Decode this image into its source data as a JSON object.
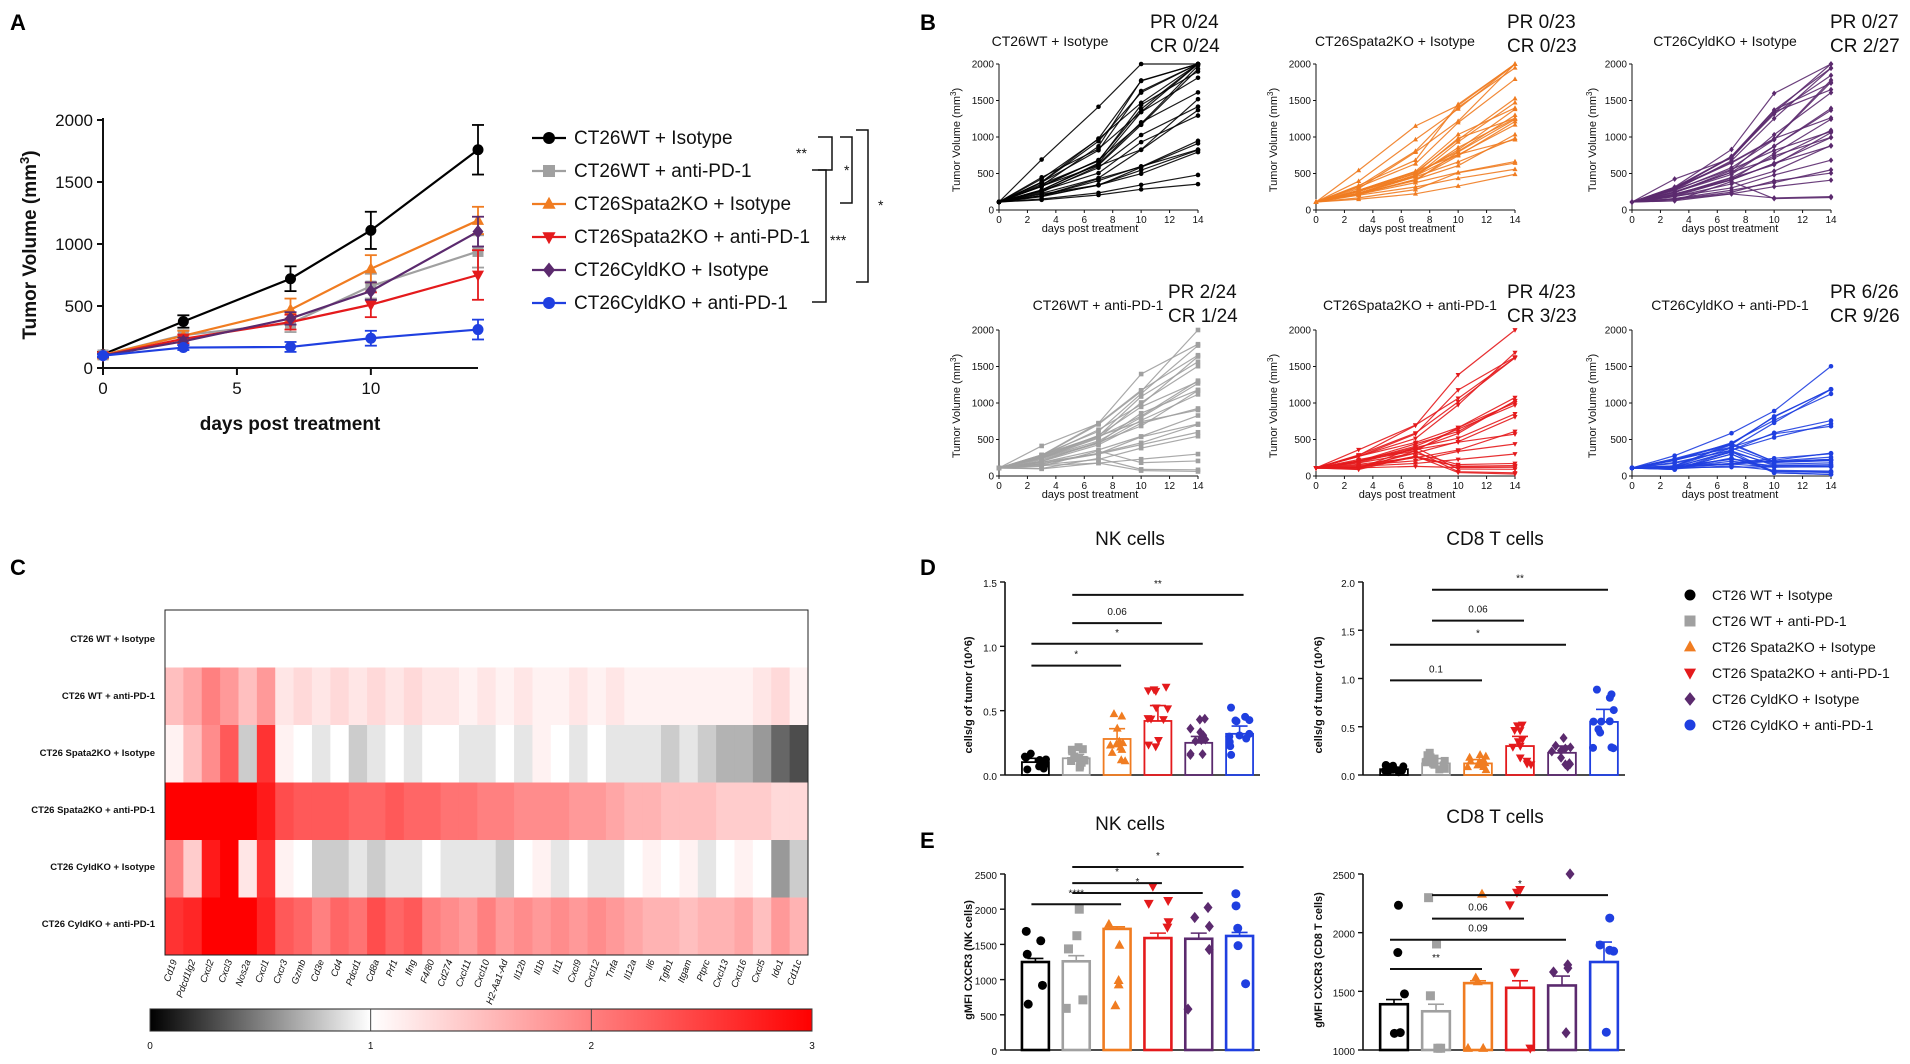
{
  "figure": {
    "panel_labels": [
      "A",
      "B",
      "C",
      "D",
      "E"
    ],
    "colors": {
      "wt_iso": "#000000",
      "wt_pd1": "#a0a0a0",
      "spata_iso": "#f07c21",
      "spata_pd1": "#e41a1c",
      "cyld_iso": "#5b2a6e",
      "cyld_pd1": "#1f3fe0"
    }
  },
  "chart_data": [
    {
      "id": "A",
      "type": "line",
      "title": "",
      "xlabel": "days post treatment",
      "ylabel": "Tumor Volume (mm3)",
      "ylabel_main": "Tumor Volume (mm",
      "ylabel_sup": "3",
      "xlim": [
        0,
        14
      ],
      "ylim": [
        0,
        2000
      ],
      "xticks": [
        "0",
        "5",
        "10"
      ],
      "xtick_values": [
        0,
        5,
        10
      ],
      "yticks": [
        "0",
        "500",
        "1000",
        "1500",
        "2000"
      ],
      "ytick_values": [
        0,
        500,
        1000,
        1500,
        2000
      ],
      "x": [
        0,
        3,
        7,
        10,
        14
      ],
      "series": [
        {
          "name": "CT26WT + Isotype",
          "color": "#000000",
          "marker": "circle",
          "values": [
            110,
            375,
            720,
            1110,
            1760
          ],
          "err": [
            20,
            50,
            100,
            150,
            200
          ]
        },
        {
          "name": "CT26WT + anti-PD-1",
          "color": "#a0a0a0",
          "marker": "square",
          "values": [
            105,
            265,
            360,
            660,
            940
          ],
          "err": [
            15,
            40,
            70,
            100,
            130
          ]
        },
        {
          "name": "CT26Spata2KO + Isotype",
          "color": "#f07c21",
          "marker": "triangle-up",
          "values": [
            105,
            260,
            470,
            800,
            1190
          ],
          "err": [
            15,
            40,
            90,
            110,
            110
          ]
        },
        {
          "name": "CT26Spata2KO + anti-PD-1",
          "color": "#e41a1c",
          "marker": "triangle-down",
          "values": [
            100,
            235,
            370,
            510,
            750
          ],
          "err": [
            15,
            35,
            60,
            100,
            200
          ]
        },
        {
          "name": "CT26CyldKO + Isotype",
          "color": "#5b2a6e",
          "marker": "diamond",
          "values": [
            100,
            215,
            400,
            620,
            1100
          ],
          "err": [
            15,
            30,
            50,
            70,
            120
          ]
        },
        {
          "name": "CT26CyldKO + anti-PD-1",
          "color": "#1f3fe0",
          "marker": "circle",
          "values": [
            100,
            165,
            170,
            240,
            310
          ],
          "err": [
            10,
            20,
            40,
            60,
            80
          ]
        }
      ],
      "significance": [
        "**",
        "*",
        "***",
        "*"
      ]
    },
    {
      "id": "B",
      "type": "line",
      "xlabel": "days post treatment",
      "ylabel": "Tumor Volume (mm3)",
      "ylabel_main": "Tumor Volume (mm",
      "ylabel_sup": "3",
      "xlim": [
        0,
        14
      ],
      "ylim": [
        0,
        2000
      ],
      "xticks": [
        "0",
        "2",
        "4",
        "6",
        "8",
        "10",
        "12",
        "14"
      ],
      "xtick_values": [
        0,
        2,
        4,
        6,
        8,
        10,
        12,
        14
      ],
      "yticks": [
        "0",
        "500",
        "1000",
        "1500",
        "2000"
      ],
      "ytick_values": [
        0,
        500,
        1000,
        1500,
        2000
      ],
      "x": [
        0,
        3,
        7,
        10,
        14
      ],
      "panels": [
        {
          "title": "CT26WT + Isotype",
          "pr": "PR 0/24",
          "cr": "CR 0/24",
          "color": "#000000",
          "marker": "circle",
          "n": 24,
          "seed": 11,
          "growth": 1.0,
          "responders": 0
        },
        {
          "title": "CT26Spata2KO + Isotype",
          "pr": "PR 0/23",
          "cr": "CR 0/23",
          "color": "#f07c21",
          "marker": "triangle-up",
          "n": 23,
          "seed": 23,
          "growth": 0.72,
          "responders": 0
        },
        {
          "title": "CT26CyldKO + Isotype",
          "pr": "PR 0/27",
          "cr": "CR 2/27",
          "color": "#5b2a6e",
          "marker": "diamond",
          "n": 27,
          "seed": 37,
          "growth": 0.6,
          "responders": 2
        },
        {
          "title": "CT26WT + anti-PD-1",
          "pr": "PR 2/24",
          "cr": "CR 1/24",
          "color": "#a0a0a0",
          "marker": "square",
          "n": 24,
          "seed": 41,
          "growth": 0.55,
          "responders": 3
        },
        {
          "title": "CT26Spata2KO + anti-PD-1",
          "pr": "PR 4/23",
          "cr": "CR 3/23",
          "color": "#e41a1c",
          "marker": "triangle-down",
          "n": 23,
          "seed": 53,
          "growth": 0.45,
          "responders": 7
        },
        {
          "title": "CT26CyldKO + anti-PD-1",
          "pr": "PR 6/26",
          "cr": "CR 9/26",
          "color": "#1f3fe0",
          "marker": "circle",
          "n": 26,
          "seed": 67,
          "growth": 0.25,
          "responders": 15
        }
      ]
    },
    {
      "id": "C",
      "type": "heatmap",
      "rows": [
        "CT26 WT + Isotype",
        "CT26 WT + anti-PD-1",
        "CT26 Spata2KO + Isotype",
        "CT26 Spata2KO  + anti-PD-1",
        "CT26 CyldKO + Isotype",
        "CT26 CyldKO + anti-PD-1"
      ],
      "columns": [
        "Cd19",
        "Pdcd1lg2",
        "Cxcl2",
        "Cxcl3",
        "Nos2a",
        "Cxcl1",
        "Cxcr3",
        "Gzmb",
        "Cd3e",
        "Cd4",
        "Pdcd1",
        "Cd8a",
        "Prf1",
        "Ifng",
        "F4/80",
        "Cd274",
        "Cxcl11",
        "Cxcl10",
        "H2-Aa1-Ad",
        "Il12b",
        "Il1b",
        "Il11",
        "Cxcl9",
        "Cxcl12",
        "Tnfa",
        "Il12a",
        "Il6",
        "Tgfb1",
        "Itgam",
        "Ptprc",
        "Cxcl13",
        "Cxcl16",
        "Cxcl5",
        "Ido1",
        "Cd11c"
      ],
      "values": [
        [
          1.0,
          1.0,
          1.0,
          1.0,
          1.0,
          1.0,
          1.0,
          1.0,
          1.0,
          1.0,
          1.0,
          1.0,
          1.0,
          1.0,
          1.0,
          1.0,
          1.0,
          1.0,
          1.0,
          1.0,
          1.0,
          1.0,
          1.0,
          1.0,
          1.0,
          1.0,
          1.0,
          1.0,
          1.0,
          1.0,
          1.0,
          1.0,
          1.0,
          1.0,
          1.0
        ],
        [
          1.5,
          1.7,
          2.0,
          1.8,
          1.5,
          1.8,
          1.2,
          1.3,
          1.2,
          1.3,
          1.2,
          1.3,
          1.2,
          1.3,
          1.2,
          1.2,
          1.1,
          1.2,
          1.1,
          1.2,
          1.1,
          1.1,
          1.2,
          1.1,
          1.2,
          1.1,
          1.1,
          1.1,
          1.1,
          1.1,
          1.1,
          1.1,
          1.2,
          1.3,
          1.1
        ],
        [
          1.1,
          1.5,
          1.9,
          2.3,
          0.8,
          2.6,
          1.1,
          1.0,
          0.9,
          1.0,
          0.8,
          0.9,
          1.0,
          0.9,
          1.0,
          1.0,
          0.9,
          0.9,
          1.0,
          0.9,
          1.1,
          1.0,
          0.9,
          1.0,
          0.9,
          0.9,
          0.9,
          0.8,
          0.9,
          0.8,
          0.7,
          0.7,
          0.6,
          0.4,
          0.3
        ],
        [
          3.0,
          3.0,
          3.0,
          3.0,
          3.0,
          2.8,
          2.4,
          2.3,
          2.3,
          2.3,
          2.2,
          2.2,
          2.3,
          2.2,
          2.2,
          2.1,
          2.1,
          2.0,
          2.0,
          1.9,
          1.9,
          1.9,
          1.8,
          1.8,
          1.7,
          1.6,
          1.6,
          1.5,
          1.5,
          1.5,
          1.4,
          1.4,
          1.4,
          1.3,
          1.3
        ],
        [
          2.0,
          1.4,
          2.8,
          3.0,
          1.2,
          2.6,
          1.1,
          1.0,
          0.8,
          0.8,
          0.9,
          0.8,
          0.9,
          0.9,
          1.0,
          0.9,
          0.9,
          0.9,
          0.8,
          1.0,
          1.1,
          0.9,
          1.0,
          0.9,
          0.9,
          1.0,
          1.1,
          1.0,
          1.1,
          0.9,
          1.0,
          1.1,
          1.0,
          0.6,
          0.8
        ],
        [
          2.6,
          2.7,
          3.0,
          3.0,
          3.0,
          2.7,
          2.3,
          2.2,
          2.0,
          2.2,
          2.1,
          2.4,
          2.2,
          2.3,
          2.0,
          1.9,
          1.8,
          2.0,
          1.8,
          1.9,
          1.8,
          1.9,
          1.8,
          1.9,
          1.8,
          1.7,
          1.6,
          1.6,
          1.5,
          1.6,
          1.6,
          1.7,
          1.5,
          1.8,
          1.6
        ]
      ],
      "colorbar": {
        "ticks": [
          "0",
          "1",
          "2",
          "3"
        ],
        "tick_values": [
          0,
          1,
          2,
          3
        ],
        "low": "#000000",
        "mid": "#ffffff",
        "high": "#ff0000"
      }
    },
    {
      "id": "D",
      "type": "bar",
      "panels": [
        {
          "title": "NK cells",
          "ylabel": "cells/g of tumor (10^6)",
          "ylim": [
            0,
            1.5
          ],
          "yticks": [
            "0.0",
            "0.5",
            "1.0",
            "1.5"
          ],
          "ytick_values": [
            0,
            0.5,
            1.0,
            1.5
          ],
          "means": [
            0.1,
            0.13,
            0.28,
            0.42,
            0.25,
            0.32
          ],
          "sem": [
            0.03,
            0.03,
            0.08,
            0.12,
            0.05,
            0.06
          ],
          "comparisons": [
            {
              "from": 0,
              "to": 2,
              "label": "*",
              "level": 0.85
            },
            {
              "from": 0,
              "to": 4,
              "label": "*",
              "level": 1.02
            },
            {
              "from": 1,
              "to": 3,
              "label": "0.06",
              "level": 1.18
            },
            {
              "from": 1,
              "to": 5,
              "label": "**",
              "level": 1.4
            }
          ]
        },
        {
          "title": "CD8 T cells",
          "ylabel": "cells/g of tumor (10^6)",
          "ylim": [
            0,
            2.0
          ],
          "yticks": [
            "0.0",
            "0.5",
            "1.0",
            "1.5",
            "2.0"
          ],
          "ytick_values": [
            0,
            0.5,
            1.0,
            1.5,
            2.0
          ],
          "means": [
            0.06,
            0.12,
            0.12,
            0.3,
            0.23,
            0.55
          ],
          "sem": [
            0.02,
            0.05,
            0.04,
            0.1,
            0.07,
            0.13
          ],
          "comparisons": [
            {
              "from": 0,
              "to": 2,
              "label": "0.1",
              "level": 0.98
            },
            {
              "from": 0,
              "to": 4,
              "label": "*",
              "level": 1.35
            },
            {
              "from": 1,
              "to": 3,
              "label": "0.06",
              "level": 1.6
            },
            {
              "from": 1,
              "to": 5,
              "label": "**",
              "level": 1.92
            }
          ]
        }
      ],
      "legend": [
        "CT26 WT + Isotype",
        "CT26 WT + anti-PD-1",
        "CT26 Spata2KO + Isotype",
        "CT26 Spata2KO + anti-PD-1",
        "CT26 CyldKO + Isotype",
        "CT26 CyldKO + anti-PD-1"
      ]
    },
    {
      "id": "E",
      "type": "bar",
      "panels": [
        {
          "title": "NK cells",
          "ylabel": "gMFI CXCR3 (NK cells)",
          "ylim": [
            0,
            2500
          ],
          "yticks": [
            "0",
            "500",
            "1000",
            "1500",
            "2000",
            "2500"
          ],
          "ytick_values": [
            0,
            500,
            1000,
            1500,
            2000,
            2500
          ],
          "means": [
            1250,
            1260,
            1720,
            1590,
            1580,
            1620
          ],
          "sem": [
            50,
            80,
            30,
            70,
            80,
            50
          ],
          "comparisons": [
            {
              "from": 0,
              "to": 2,
              "label": "****",
              "level": 2070
            },
            {
              "from": 1,
              "to": 4,
              "label": "*",
              "level": 2230
            },
            {
              "from": 1,
              "to": 3,
              "label": "*",
              "level": 2370
            },
            {
              "from": 1,
              "to": 5,
              "label": "*",
              "level": 2600
            }
          ]
        },
        {
          "title": "CD8 T cells",
          "ylabel": "gMFI CXCR3 (CD8 T cells)",
          "ylim": [
            1000,
            2500
          ],
          "yticks": [
            "1000",
            "1500",
            "2000",
            "2500"
          ],
          "ytick_values": [
            1000,
            1500,
            2000,
            2500
          ],
          "means": [
            1390,
            1330,
            1570,
            1530,
            1550,
            1750
          ],
          "sem": [
            40,
            60,
            20,
            60,
            80,
            170
          ],
          "comparisons": [
            {
              "from": 0,
              "to": 2,
              "label": "**",
              "level": 1690
            },
            {
              "from": 0,
              "to": 4,
              "label": "0.09",
              "level": 1940
            },
            {
              "from": 1,
              "to": 3,
              "label": "0.06",
              "level": 2120
            },
            {
              "from": 1,
              "to": 5,
              "label": "*",
              "level": 2320
            }
          ]
        }
      ]
    }
  ]
}
